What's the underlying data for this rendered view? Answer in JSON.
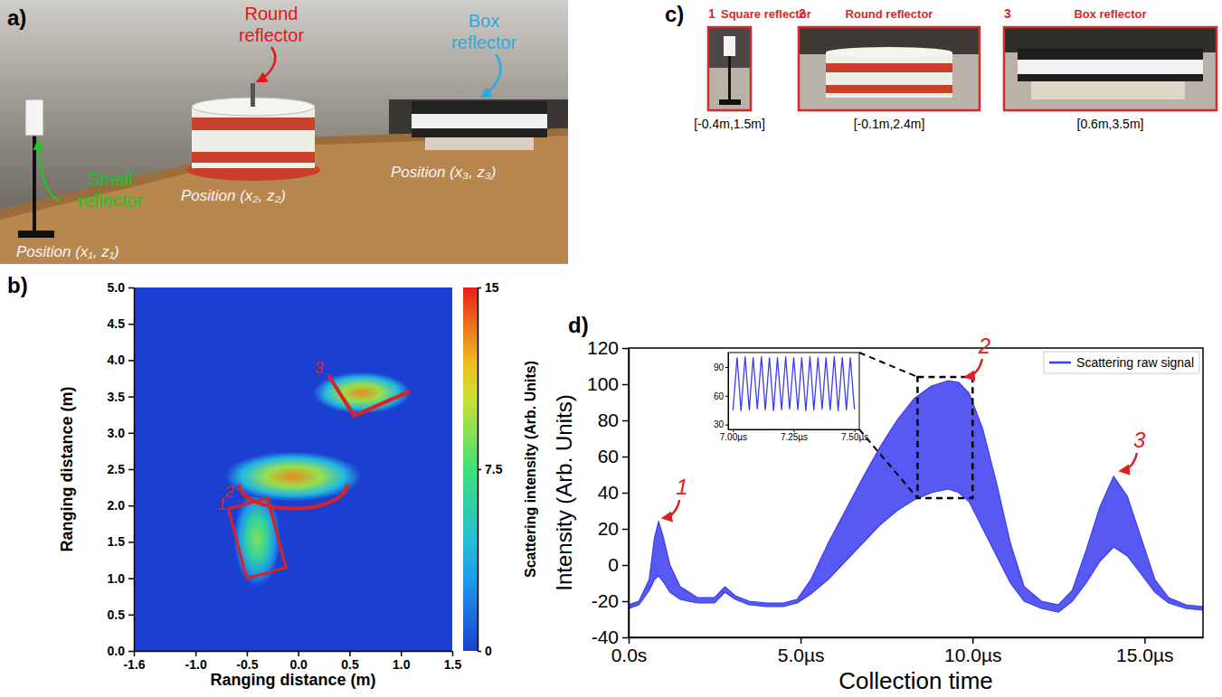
{
  "panels": {
    "a": {
      "label": "a)",
      "annotations": [
        {
          "text": "Round reflector",
          "color": "#e8141a"
        },
        {
          "text": "Box reflector",
          "color": "#29abe2"
        },
        {
          "text": "Small reflector",
          "color": "#22c322"
        }
      ],
      "positions": [
        "Position (x₁, z₁)",
        "Position (x₂, z₂)",
        "Position (x₃, z₃)"
      ]
    },
    "c": {
      "label": "c)",
      "items": [
        {
          "number": "1",
          "title": "Square reflector",
          "coords": "[-0.4m,1.5m]"
        },
        {
          "number": "2",
          "title": "Round reflector",
          "coords": "[-0.1m,2.4m]"
        },
        {
          "number": "3",
          "title": "Box reflector",
          "coords": "[0.6m,3.5m]"
        }
      ]
    }
  },
  "chart_data": [
    {
      "panel": "b)",
      "type": "heatmap",
      "xlabel": "Ranging distance (m)",
      "ylabel": "Ranging distance (m)",
      "xlim": [
        -1.6,
        1.5
      ],
      "xticks": [
        -1.6,
        {
          "value": -1,
          "label": "-1.0"
        },
        -0.5,
        {
          "value": 0,
          "label": "0.0"
        },
        0.5,
        {
          "value": 1,
          "label": "1.0"
        },
        1.5
      ],
      "ylim": [
        0,
        5
      ],
      "yticks": [
        {
          "value": 0,
          "label": "0.0"
        },
        0.5,
        {
          "value": 1,
          "label": "1.0"
        },
        1.5,
        {
          "value": 2,
          "label": "2.0"
        },
        2.5,
        {
          "value": 3,
          "label": "3.0"
        },
        3.5,
        {
          "value": 4,
          "label": "4.0"
        },
        4.5,
        {
          "value": 5,
          "label": "5.0"
        }
      ],
      "peaks": [
        {
          "label": "1",
          "x": -0.4,
          "y": 1.55,
          "x_extent": 0.12,
          "y_extent": 0.35,
          "intensity": 9
        },
        {
          "label": "2",
          "x": -0.05,
          "y": 2.4,
          "x_extent": 0.35,
          "y_extent": 0.18,
          "intensity": 13
        },
        {
          "label": "3",
          "x": 0.62,
          "y": 3.55,
          "x_extent": 0.25,
          "y_extent": 0.15,
          "intensity": 13
        }
      ],
      "colorbar": {
        "label": "Scattering intensity  (Arb. Units)",
        "range": [
          0,
          15
        ],
        "ticks": [
          0,
          7.5,
          15
        ]
      }
    },
    {
      "panel": "d)",
      "type": "area",
      "xlabel": "Collection time",
      "ylabel": "Intensity (Arb. Units)",
      "xlim": [
        0,
        16.7
      ],
      "xticks": [
        {
          "value": 0,
          "label": "0.0s"
        },
        {
          "value": 5,
          "label": "5.0µs"
        },
        {
          "value": 10,
          "label": "10.0µs"
        },
        {
          "value": 15,
          "label": "15.0µs"
        }
      ],
      "ylim": [
        -40,
        120
      ],
      "yticks": [
        -40,
        -20,
        0,
        20,
        40,
        60,
        80,
        100,
        120
      ],
      "legend": "upper right",
      "x": [
        0,
        0.3,
        0.6,
        0.75,
        0.87,
        1.0,
        1.2,
        1.5,
        2.0,
        2.5,
        2.8,
        3.1,
        3.5,
        4.0,
        4.5,
        4.9,
        5.3,
        5.8,
        6.3,
        6.8,
        7.3,
        7.8,
        8.3,
        8.8,
        9.3,
        9.6,
        9.9,
        10.3,
        10.7,
        11.1,
        11.5,
        12.0,
        12.5,
        12.9,
        13.3,
        13.7,
        14.1,
        14.5,
        14.9,
        15.3,
        15.7,
        16.2,
        16.7
      ],
      "series": [
        {
          "name": "Scattering raw signal",
          "color": "#3b3bf0",
          "upper": [
            -22,
            -20,
            -8,
            15,
            24,
            16,
            0,
            -12,
            -18,
            -18,
            -12,
            -17,
            -20,
            -21,
            -21,
            -19,
            -8,
            12,
            30,
            48,
            65,
            80,
            92,
            99,
            102,
            101,
            95,
            75,
            45,
            12,
            -12,
            -20,
            -22,
            -14,
            8,
            32,
            49,
            38,
            15,
            -8,
            -18,
            -22,
            -23
          ],
          "lower": [
            -24,
            -22,
            -14,
            -8,
            -6,
            -9,
            -15,
            -19,
            -21,
            -21,
            -15,
            -19,
            -22,
            -23,
            -23,
            -21,
            -16,
            -8,
            2,
            12,
            22,
            30,
            36,
            40,
            42,
            40,
            35,
            20,
            5,
            -10,
            -20,
            -24,
            -26,
            -20,
            -10,
            2,
            10,
            5,
            -5,
            -15,
            -21,
            -24,
            -25
          ]
        }
      ],
      "annotations": [
        {
          "text": "1",
          "x": 0.9,
          "y": 25
        },
        {
          "text": "2",
          "x": 9.7,
          "y": 103
        },
        {
          "text": "3",
          "x": 14.2,
          "y": 51
        }
      ],
      "zoom_box": {
        "xlim": [
          8.4,
          10.0
        ],
        "ylim": [
          37,
          104
        ]
      },
      "inset": {
        "type": "line",
        "color": "#3b3bf0",
        "xlim": [
          6.98,
          7.52
        ],
        "xticks": [
          {
            "value": 7,
            "label": "7.00µs"
          },
          {
            "value": 7.25,
            "label": "7.25µs"
          },
          {
            "value": 7.5,
            "label": "7.50µs"
          }
        ],
        "ylim": [
          25,
          105
        ],
        "yticks": [
          30,
          60,
          90
        ],
        "x": [
          7.0,
          7.017,
          7.033,
          7.05,
          7.067,
          7.083,
          7.1,
          7.117,
          7.133,
          7.15,
          7.167,
          7.183,
          7.2,
          7.217,
          7.233,
          7.25,
          7.267,
          7.283,
          7.3,
          7.317,
          7.333,
          7.35,
          7.367,
          7.383,
          7.4,
          7.417,
          7.433,
          7.45,
          7.467,
          7.483,
          7.5
        ],
        "values": [
          45,
          100,
          44,
          101,
          45,
          100,
          46,
          101,
          45,
          100,
          44,
          100,
          45,
          101,
          46,
          100,
          45,
          100,
          44,
          101,
          45,
          100,
          46,
          100,
          45,
          101,
          44,
          100,
          45,
          100,
          46
        ]
      }
    }
  ]
}
